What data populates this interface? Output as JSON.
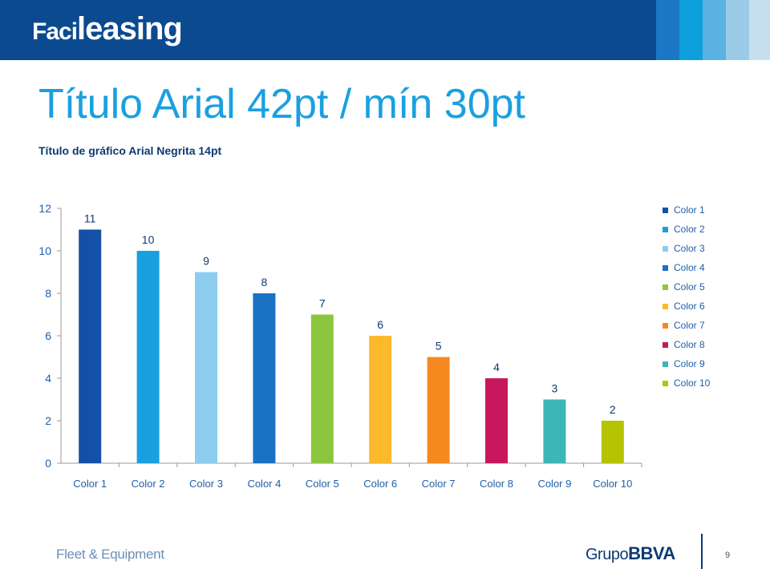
{
  "brand": {
    "logo_part1": "Faci",
    "logo_part2": "leasing"
  },
  "header": {
    "stripe_colors": [
      "#1a78c6",
      "#0ea0dc",
      "#5ab2e0",
      "#9ccbea",
      "#c6e0ef"
    ]
  },
  "page": {
    "title": "Título Arial 42pt / mín 30pt",
    "chart_heading": "Título de gráfico Arial Negrita 14pt",
    "page_number": "9"
  },
  "footer": {
    "left_text": "Fleet & Equipment",
    "brand_part1": "Grupo",
    "brand_part2": "BBVA"
  },
  "colors": {
    "header": "#0c4a8f",
    "title": "#1aa0e0",
    "chart_heading": "#0c3a73"
  },
  "chart_data": {
    "type": "bar",
    "title": "Título de gráfico Arial Negrita 14pt",
    "categories": [
      "Color 1",
      "Color 2",
      "Color 3",
      "Color 4",
      "Color 5",
      "Color 6",
      "Color 7",
      "Color 8",
      "Color 9",
      "Color 10"
    ],
    "values": [
      11,
      10,
      9,
      8,
      7,
      6,
      5,
      4,
      3,
      2
    ],
    "bar_colors": [
      "#1550a8",
      "#1aa0e0",
      "#8ccdef",
      "#1a72c4",
      "#8cc63e",
      "#fdb92c",
      "#f5891f",
      "#c8185c",
      "#3cb6b6",
      "#b5c300"
    ],
    "ylim": [
      0,
      12
    ],
    "yticks": [
      0,
      2,
      4,
      6,
      8,
      10,
      12
    ],
    "xlabel": "",
    "ylabel": "",
    "grid": false,
    "legend": {
      "placement": "right",
      "entries": [
        "Color 1",
        "Color 2",
        "Color 3",
        "Color 4",
        "Color 5",
        "Color 6",
        "Color 7",
        "Color 8",
        "Color 9",
        "Color 10"
      ]
    },
    "data_labels": true
  }
}
